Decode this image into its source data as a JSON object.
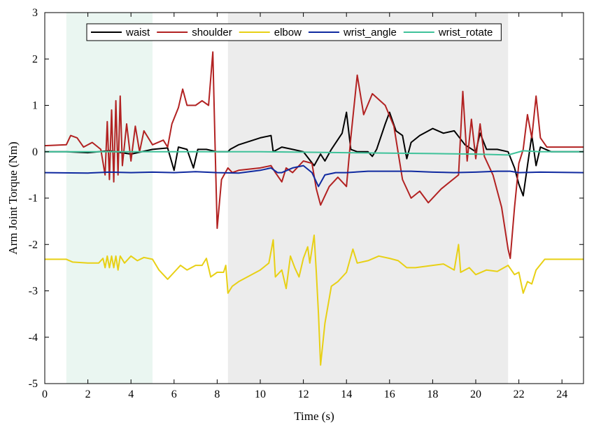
{
  "chart_data": {
    "type": "line",
    "xlabel": "Time (s)",
    "ylabel": "Arm Joint Torque (Nm)",
    "xlim": [
      0,
      25
    ],
    "ylim": [
      -5,
      3
    ],
    "xticks": [
      0,
      2,
      4,
      6,
      8,
      10,
      12,
      14,
      16,
      18,
      20,
      22,
      24
    ],
    "yticks": [
      -5,
      -4,
      -3,
      -2,
      -1,
      0,
      1,
      2,
      3
    ],
    "xtick_labels": [
      "0",
      "2",
      "4",
      "6",
      "8",
      "10",
      "12",
      "14",
      "16",
      "18",
      "20",
      "22",
      "24"
    ],
    "ytick_labels": [
      "-5",
      "-4",
      "-3",
      "-2",
      "-1",
      "0",
      "1",
      "2",
      "3"
    ],
    "grid": false,
    "legend_position": "top",
    "shaded_regions": [
      {
        "x0": 1.0,
        "x1": 5.0,
        "color": "#eaf6f1"
      },
      {
        "x0": 8.5,
        "x1": 21.5,
        "color": "#ececec"
      }
    ],
    "series": [
      {
        "name": "waist",
        "color": "#000000",
        "points": [
          [
            0,
            0
          ],
          [
            1,
            0
          ],
          [
            2,
            -0.02
          ],
          [
            3,
            0.02
          ],
          [
            4,
            -0.05
          ],
          [
            5,
            0.05
          ],
          [
            5.7,
            0.08
          ],
          [
            6,
            -0.4
          ],
          [
            6.2,
            0.1
          ],
          [
            6.6,
            0.05
          ],
          [
            6.9,
            -0.35
          ],
          [
            7.1,
            0.05
          ],
          [
            7.5,
            0.05
          ],
          [
            8,
            0
          ],
          [
            8.5,
            0
          ],
          [
            8.6,
            0.05
          ],
          [
            9,
            0.15
          ],
          [
            10,
            0.3
          ],
          [
            10.5,
            0.35
          ],
          [
            10.6,
            0
          ],
          [
            11,
            0.1
          ],
          [
            11.5,
            0.05
          ],
          [
            12,
            0
          ],
          [
            12.5,
            -0.3
          ],
          [
            12.8,
            -0.05
          ],
          [
            13,
            -0.2
          ],
          [
            13.3,
            0.05
          ],
          [
            13.8,
            0.4
          ],
          [
            14,
            0.85
          ],
          [
            14.2,
            0.05
          ],
          [
            14.5,
            0
          ],
          [
            15,
            0
          ],
          [
            15.2,
            -0.1
          ],
          [
            15.4,
            0.05
          ],
          [
            15.8,
            0.6
          ],
          [
            16,
            0.85
          ],
          [
            16.3,
            0.45
          ],
          [
            16.6,
            0.35
          ],
          [
            16.8,
            -0.15
          ],
          [
            17,
            0.2
          ],
          [
            17.4,
            0.35
          ],
          [
            18,
            0.5
          ],
          [
            18.5,
            0.4
          ],
          [
            19,
            0.45
          ],
          [
            19.5,
            0.15
          ],
          [
            20,
            0
          ],
          [
            20.2,
            0.4
          ],
          [
            20.5,
            0.05
          ],
          [
            21,
            0.05
          ],
          [
            21.5,
            0
          ],
          [
            21.8,
            -0.35
          ],
          [
            22,
            -0.7
          ],
          [
            22.2,
            -0.95
          ],
          [
            22.4,
            -0.3
          ],
          [
            22.6,
            0.35
          ],
          [
            22.8,
            -0.3
          ],
          [
            23,
            0.1
          ],
          [
            23.5,
            0
          ],
          [
            25,
            0
          ]
        ]
      },
      {
        "name": "shoulder",
        "color": "#b22222",
        "points": [
          [
            0,
            0.13
          ],
          [
            1,
            0.15
          ],
          [
            1.2,
            0.35
          ],
          [
            1.5,
            0.3
          ],
          [
            1.8,
            0.1
          ],
          [
            2.2,
            0.2
          ],
          [
            2.6,
            0.05
          ],
          [
            2.8,
            -0.5
          ],
          [
            2.9,
            0.65
          ],
          [
            3,
            -0.6
          ],
          [
            3.1,
            0.9
          ],
          [
            3.2,
            -0.65
          ],
          [
            3.3,
            1.1
          ],
          [
            3.4,
            -0.5
          ],
          [
            3.5,
            1.2
          ],
          [
            3.6,
            -0.3
          ],
          [
            3.8,
            0.6
          ],
          [
            4,
            -0.2
          ],
          [
            4.2,
            0.55
          ],
          [
            4.4,
            0
          ],
          [
            4.6,
            0.45
          ],
          [
            5,
            0.15
          ],
          [
            5.5,
            0.25
          ],
          [
            5.7,
            0.1
          ],
          [
            5.9,
            0.6
          ],
          [
            6.2,
            0.95
          ],
          [
            6.4,
            1.35
          ],
          [
            6.6,
            1.0
          ],
          [
            7,
            1.0
          ],
          [
            7.3,
            1.1
          ],
          [
            7.6,
            1.0
          ],
          [
            7.8,
            2.15
          ],
          [
            7.9,
            0.2
          ],
          [
            8,
            -1.65
          ],
          [
            8.2,
            -0.6
          ],
          [
            8.5,
            -0.35
          ],
          [
            8.7,
            -0.45
          ],
          [
            9,
            -0.4
          ],
          [
            10,
            -0.35
          ],
          [
            10.5,
            -0.3
          ],
          [
            10.7,
            -0.45
          ],
          [
            11,
            -0.65
          ],
          [
            11.2,
            -0.35
          ],
          [
            11.5,
            -0.45
          ],
          [
            12,
            -0.2
          ],
          [
            12.4,
            -0.25
          ],
          [
            12.6,
            -0.8
          ],
          [
            12.8,
            -1.15
          ],
          [
            13.2,
            -0.75
          ],
          [
            13.6,
            -0.55
          ],
          [
            14,
            -0.75
          ],
          [
            14.2,
            0.3
          ],
          [
            14.5,
            1.65
          ],
          [
            14.8,
            0.8
          ],
          [
            15.2,
            1.25
          ],
          [
            15.8,
            1.0
          ],
          [
            16.2,
            0.55
          ],
          [
            16.6,
            -0.6
          ],
          [
            17,
            -1.0
          ],
          [
            17.4,
            -0.85
          ],
          [
            17.8,
            -1.1
          ],
          [
            18.4,
            -0.8
          ],
          [
            19.2,
            -0.5
          ],
          [
            19.4,
            1.3
          ],
          [
            19.6,
            -0.2
          ],
          [
            19.8,
            0.7
          ],
          [
            20,
            -0.15
          ],
          [
            20.2,
            0.6
          ],
          [
            20.4,
            -0.1
          ],
          [
            20.8,
            -0.5
          ],
          [
            21.2,
            -1.2
          ],
          [
            21.5,
            -2.1
          ],
          [
            21.6,
            -2.3
          ],
          [
            21.8,
            -1.2
          ],
          [
            22,
            -0.25
          ],
          [
            22.2,
            0.05
          ],
          [
            22.4,
            0.8
          ],
          [
            22.6,
            0.3
          ],
          [
            22.8,
            1.2
          ],
          [
            23,
            0.3
          ],
          [
            23.3,
            0.1
          ],
          [
            25,
            0.1
          ]
        ]
      },
      {
        "name": "elbow",
        "color": "#e8d015",
        "points": [
          [
            0,
            -2.32
          ],
          [
            1,
            -2.32
          ],
          [
            1.3,
            -2.38
          ],
          [
            2,
            -2.4
          ],
          [
            2.5,
            -2.4
          ],
          [
            2.7,
            -2.3
          ],
          [
            2.8,
            -2.5
          ],
          [
            2.9,
            -2.25
          ],
          [
            3,
            -2.5
          ],
          [
            3.1,
            -2.25
          ],
          [
            3.2,
            -2.5
          ],
          [
            3.3,
            -2.25
          ],
          [
            3.4,
            -2.55
          ],
          [
            3.5,
            -2.25
          ],
          [
            3.7,
            -2.4
          ],
          [
            4,
            -2.25
          ],
          [
            4.3,
            -2.35
          ],
          [
            4.6,
            -2.28
          ],
          [
            5,
            -2.32
          ],
          [
            5.3,
            -2.55
          ],
          [
            5.5,
            -2.65
          ],
          [
            5.7,
            -2.75
          ],
          [
            6,
            -2.6
          ],
          [
            6.3,
            -2.45
          ],
          [
            6.6,
            -2.55
          ],
          [
            7,
            -2.45
          ],
          [
            7.3,
            -2.45
          ],
          [
            7.5,
            -2.3
          ],
          [
            7.7,
            -2.7
          ],
          [
            8,
            -2.6
          ],
          [
            8.3,
            -2.6
          ],
          [
            8.4,
            -2.45
          ],
          [
            8.5,
            -3.05
          ],
          [
            8.7,
            -2.9
          ],
          [
            9,
            -2.8
          ],
          [
            10,
            -2.55
          ],
          [
            10.4,
            -2.4
          ],
          [
            10.6,
            -1.9
          ],
          [
            10.7,
            -2.7
          ],
          [
            11,
            -2.55
          ],
          [
            11.2,
            -2.95
          ],
          [
            11.4,
            -2.25
          ],
          [
            11.6,
            -2.5
          ],
          [
            11.8,
            -2.7
          ],
          [
            12,
            -2.3
          ],
          [
            12.2,
            -2.05
          ],
          [
            12.3,
            -2.4
          ],
          [
            12.5,
            -1.8
          ],
          [
            12.6,
            -2.6
          ],
          [
            12.7,
            -3.5
          ],
          [
            12.8,
            -4.6
          ],
          [
            13,
            -3.7
          ],
          [
            13.3,
            -2.9
          ],
          [
            13.6,
            -2.8
          ],
          [
            14,
            -2.6
          ],
          [
            14.3,
            -2.1
          ],
          [
            14.5,
            -2.4
          ],
          [
            15,
            -2.35
          ],
          [
            15.5,
            -2.25
          ],
          [
            16,
            -2.3
          ],
          [
            16.4,
            -2.35
          ],
          [
            16.8,
            -2.5
          ],
          [
            17.2,
            -2.5
          ],
          [
            18,
            -2.45
          ],
          [
            18.5,
            -2.42
          ],
          [
            19,
            -2.55
          ],
          [
            19.2,
            -2.0
          ],
          [
            19.3,
            -2.6
          ],
          [
            19.7,
            -2.5
          ],
          [
            20,
            -2.65
          ],
          [
            20.5,
            -2.55
          ],
          [
            21,
            -2.58
          ],
          [
            21.5,
            -2.45
          ],
          [
            21.8,
            -2.65
          ],
          [
            22,
            -2.6
          ],
          [
            22.2,
            -3.05
          ],
          [
            22.4,
            -2.8
          ],
          [
            22.6,
            -2.85
          ],
          [
            22.8,
            -2.55
          ],
          [
            23.2,
            -2.32
          ],
          [
            25,
            -2.32
          ]
        ]
      },
      {
        "name": "wrist_angle",
        "color": "#102aa0",
        "points": [
          [
            0,
            -0.45
          ],
          [
            2,
            -0.46
          ],
          [
            3,
            -0.44
          ],
          [
            4,
            -0.45
          ],
          [
            5,
            -0.44
          ],
          [
            6,
            -0.45
          ],
          [
            7,
            -0.43
          ],
          [
            8,
            -0.45
          ],
          [
            9,
            -0.46
          ],
          [
            10,
            -0.4
          ],
          [
            10.5,
            -0.35
          ],
          [
            10.8,
            -0.45
          ],
          [
            11,
            -0.45
          ],
          [
            11.5,
            -0.35
          ],
          [
            12,
            -0.3
          ],
          [
            12.4,
            -0.45
          ],
          [
            12.7,
            -0.75
          ],
          [
            13,
            -0.5
          ],
          [
            13.5,
            -0.45
          ],
          [
            14,
            -0.45
          ],
          [
            15,
            -0.42
          ],
          [
            16,
            -0.42
          ],
          [
            17,
            -0.42
          ],
          [
            18,
            -0.44
          ],
          [
            19,
            -0.45
          ],
          [
            20,
            -0.44
          ],
          [
            21,
            -0.42
          ],
          [
            21.6,
            -0.42
          ],
          [
            22,
            -0.45
          ],
          [
            23,
            -0.44
          ],
          [
            25,
            -0.45
          ]
        ]
      },
      {
        "name": "wrist_rotate",
        "color": "#3fc29a",
        "points": [
          [
            0,
            0
          ],
          [
            2,
            0
          ],
          [
            4,
            0
          ],
          [
            6,
            0
          ],
          [
            8,
            0
          ],
          [
            10,
            0
          ],
          [
            12,
            -0.01
          ],
          [
            14,
            -0.02
          ],
          [
            16,
            -0.03
          ],
          [
            18,
            -0.04
          ],
          [
            20,
            -0.05
          ],
          [
            21.5,
            -0.07
          ],
          [
            22.2,
            0.02
          ],
          [
            23,
            0
          ],
          [
            25,
            0
          ]
        ]
      }
    ]
  }
}
